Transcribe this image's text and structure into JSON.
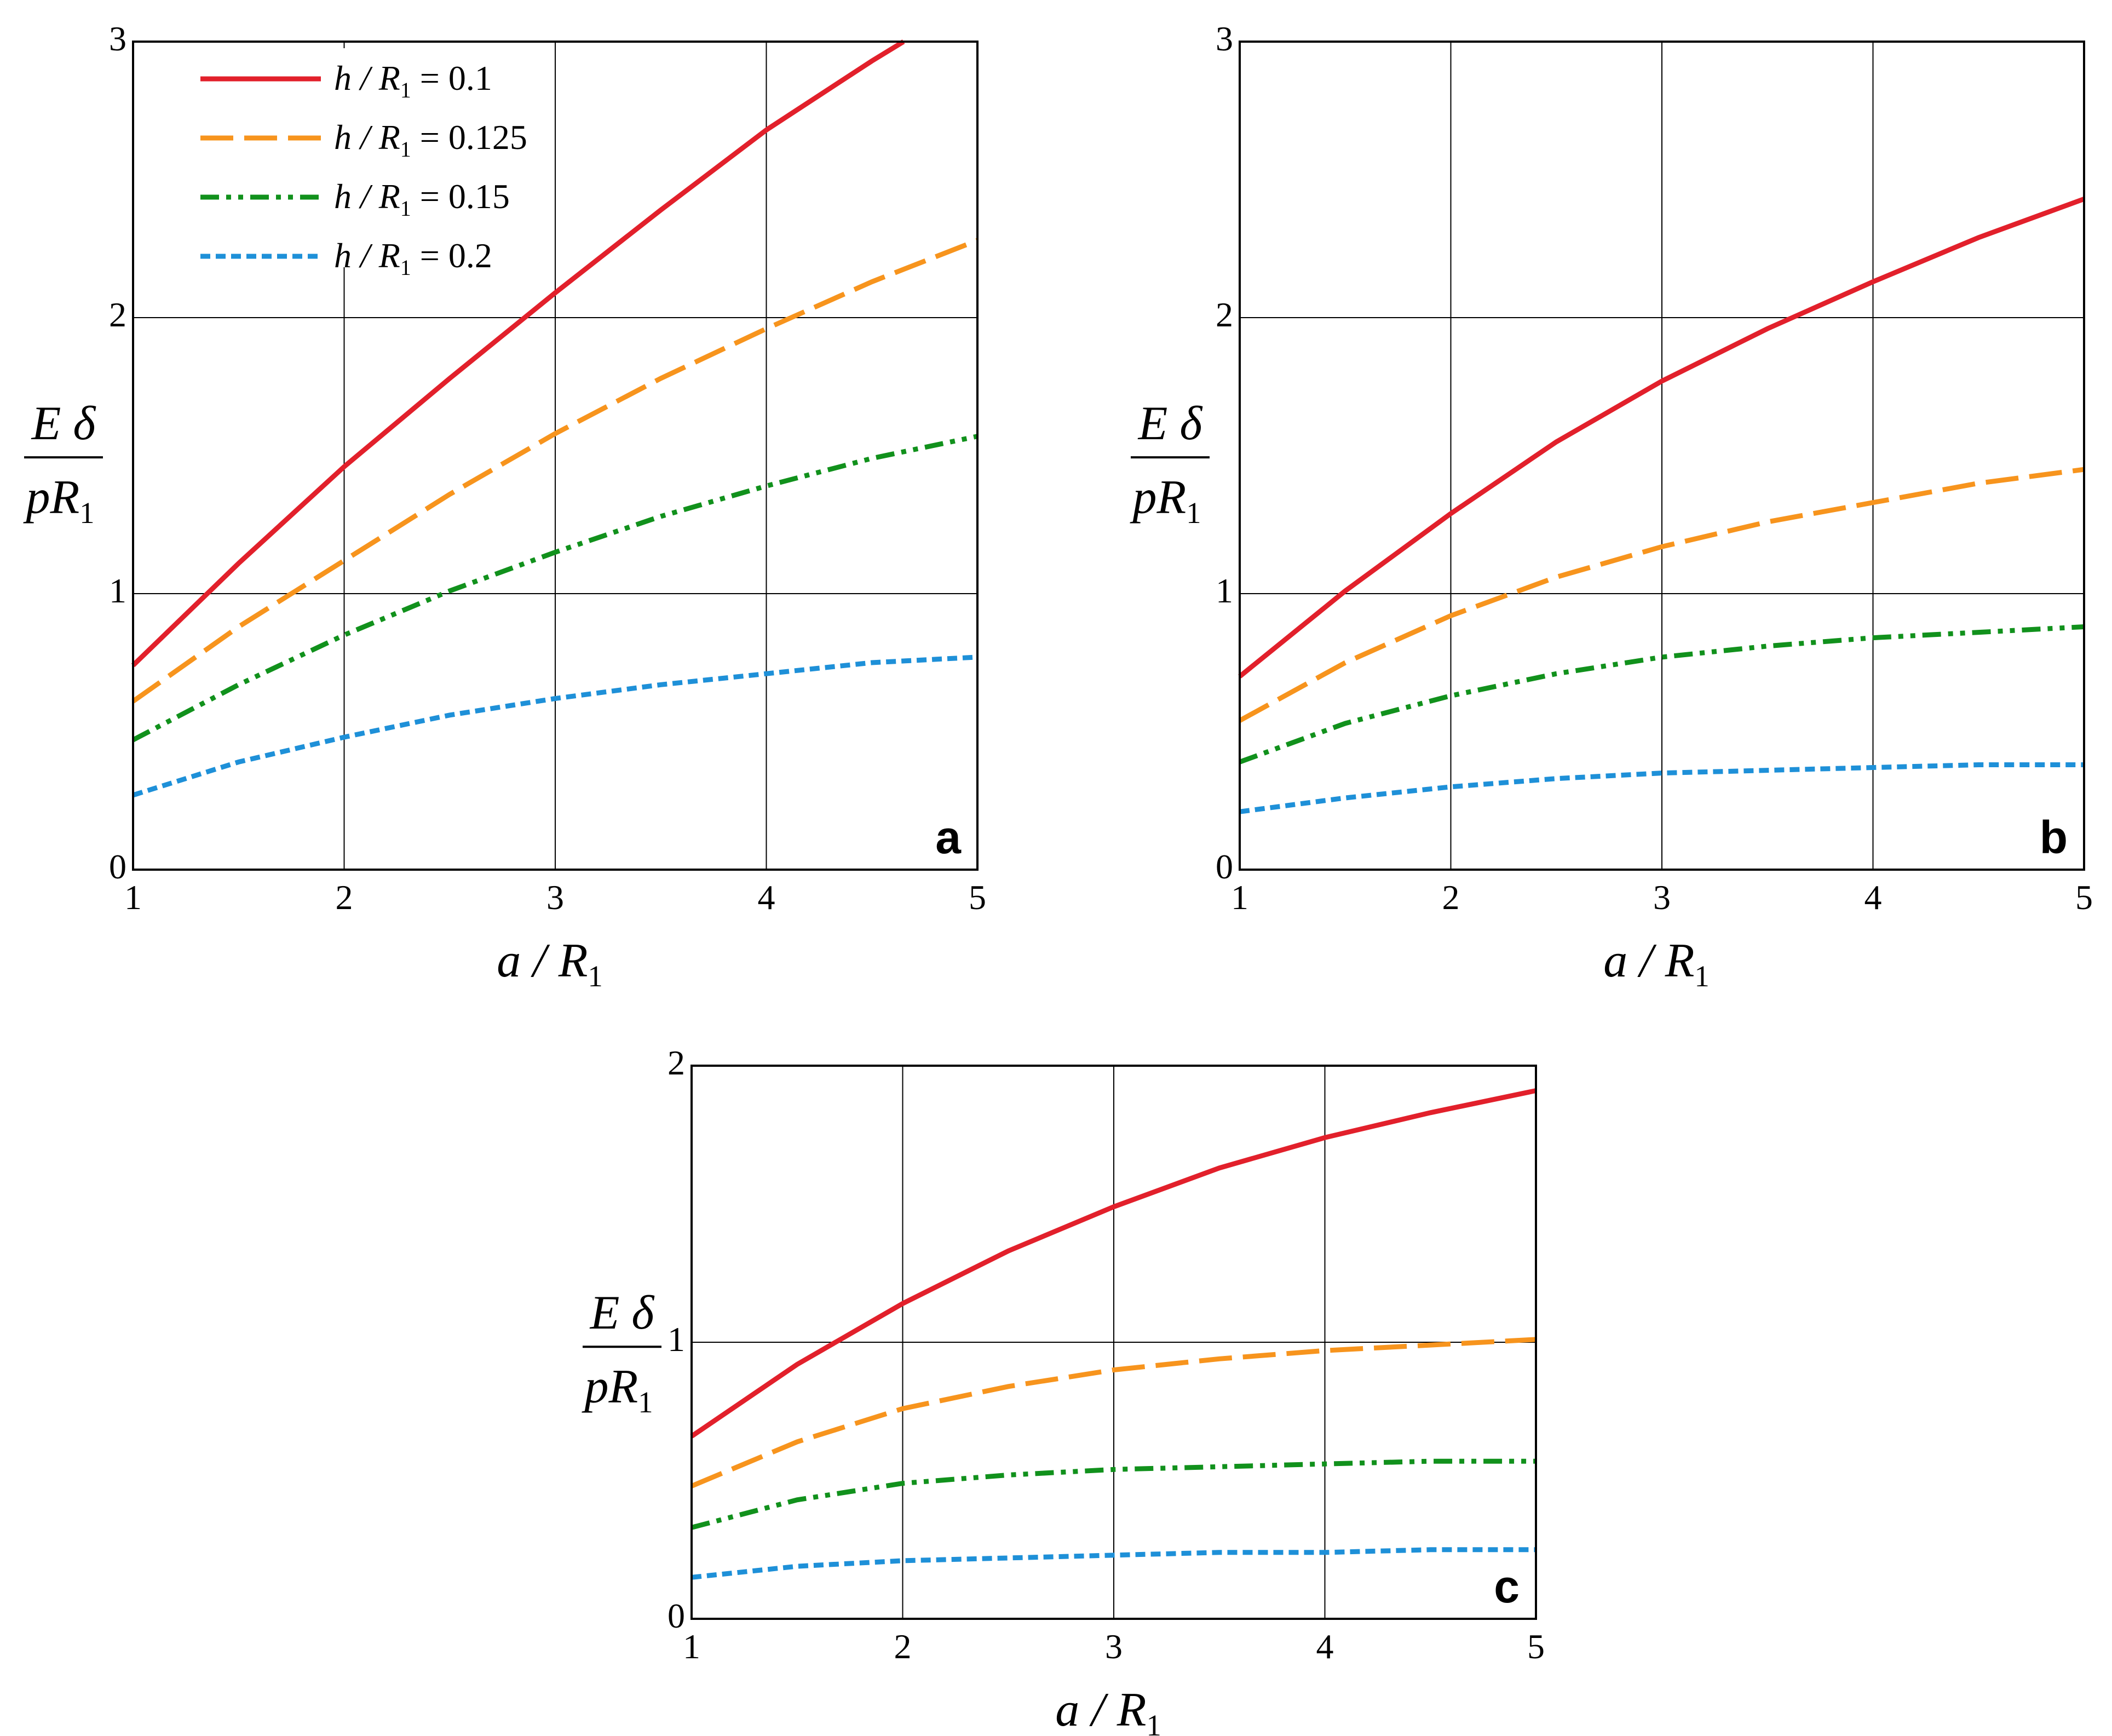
{
  "chart_data": [
    {
      "type": "line",
      "panel_label": "a",
      "xlabel": {
        "main": "a / R",
        "sub": "1"
      },
      "ylabel": {
        "num": "E δ",
        "den_main": "pR",
        "den_sub": "1"
      },
      "xlim": [
        1,
        5
      ],
      "ylim": [
        0,
        3
      ],
      "xticks": [
        "1",
        "2",
        "3",
        "4",
        "5"
      ],
      "yticks": [
        "0",
        "1",
        "2",
        "3"
      ],
      "grid": true,
      "legend": {
        "placement": "top-left",
        "entries": [
          {
            "main": "h / R",
            "sub": "1",
            "value": " = 0.1"
          },
          {
            "main": "h / R",
            "sub": "1",
            "value": " = 0.125"
          },
          {
            "main": "h / R",
            "sub": "1",
            "value": " = 0.15"
          },
          {
            "main": "h / R",
            "sub": "1",
            "value": " = 0.2"
          }
        ]
      },
      "series": [
        {
          "x": [
            1,
            1.5,
            2,
            2.5,
            3,
            3.5,
            4,
            4.5,
            4.65
          ],
          "y": [
            0.74,
            1.11,
            1.46,
            1.78,
            2.09,
            2.39,
            2.68,
            2.93,
            3.0
          ]
        },
        {
          "x": [
            1,
            1.5,
            2,
            2.5,
            3,
            3.5,
            4,
            4.5,
            5
          ],
          "y": [
            0.61,
            0.88,
            1.12,
            1.36,
            1.58,
            1.78,
            1.96,
            2.13,
            2.28
          ]
        },
        {
          "x": [
            1,
            1.5,
            2,
            2.5,
            3,
            3.5,
            4,
            4.5,
            5
          ],
          "y": [
            0.47,
            0.67,
            0.85,
            1.01,
            1.15,
            1.28,
            1.39,
            1.49,
            1.57
          ]
        },
        {
          "x": [
            1,
            1.5,
            2,
            2.5,
            3,
            3.5,
            4,
            4.5,
            5
          ],
          "y": [
            0.27,
            0.39,
            0.48,
            0.56,
            0.62,
            0.67,
            0.71,
            0.75,
            0.77
          ]
        }
      ]
    },
    {
      "type": "line",
      "panel_label": "b",
      "xlabel": {
        "main": "a / R",
        "sub": "1"
      },
      "ylabel": {
        "num": "E δ",
        "den_main": "pR",
        "den_sub": "1"
      },
      "xlim": [
        1,
        5
      ],
      "ylim": [
        0,
        3
      ],
      "xticks": [
        "1",
        "2",
        "3",
        "4",
        "5"
      ],
      "yticks": [
        "0",
        "1",
        "2",
        "3"
      ],
      "grid": true,
      "series": [
        {
          "x": [
            1,
            1.5,
            2,
            2.5,
            3,
            3.5,
            4,
            4.5,
            5
          ],
          "y": [
            0.7,
            1.01,
            1.29,
            1.55,
            1.77,
            1.96,
            2.13,
            2.29,
            2.43
          ]
        },
        {
          "x": [
            1,
            1.5,
            2,
            2.5,
            3,
            3.5,
            4,
            4.5,
            5
          ],
          "y": [
            0.54,
            0.75,
            0.92,
            1.06,
            1.17,
            1.26,
            1.33,
            1.4,
            1.45
          ]
        },
        {
          "x": [
            1,
            1.5,
            2,
            2.5,
            3,
            3.5,
            4,
            4.5,
            5
          ],
          "y": [
            0.39,
            0.53,
            0.63,
            0.71,
            0.77,
            0.81,
            0.84,
            0.86,
            0.88
          ]
        },
        {
          "x": [
            1,
            1.5,
            2,
            2.5,
            3,
            3.5,
            4,
            4.5,
            5
          ],
          "y": [
            0.21,
            0.26,
            0.3,
            0.33,
            0.35,
            0.36,
            0.37,
            0.38,
            0.38
          ]
        }
      ]
    },
    {
      "type": "line",
      "panel_label": "c",
      "xlabel": {
        "main": "a / R",
        "sub": "1"
      },
      "ylabel": {
        "num": "E δ",
        "den_main": "pR",
        "den_sub": "1"
      },
      "xlim": [
        1,
        5
      ],
      "ylim": [
        0,
        2
      ],
      "xticks": [
        "1",
        "2",
        "3",
        "4",
        "5"
      ],
      "yticks": [
        "0",
        "1",
        "2"
      ],
      "grid": true,
      "series": [
        {
          "x": [
            1,
            1.5,
            2,
            2.5,
            3,
            3.5,
            4,
            4.5,
            5
          ],
          "y": [
            0.66,
            0.92,
            1.14,
            1.33,
            1.49,
            1.63,
            1.74,
            1.83,
            1.91
          ]
        },
        {
          "x": [
            1,
            1.5,
            2,
            2.5,
            3,
            3.5,
            4,
            4.5,
            5
          ],
          "y": [
            0.48,
            0.64,
            0.76,
            0.84,
            0.9,
            0.94,
            0.97,
            0.99,
            1.01
          ]
        },
        {
          "x": [
            1,
            1.5,
            2,
            2.5,
            3,
            3.5,
            4,
            4.5,
            5
          ],
          "y": [
            0.33,
            0.43,
            0.49,
            0.52,
            0.54,
            0.55,
            0.56,
            0.57,
            0.57
          ]
        },
        {
          "x": [
            1,
            1.5,
            2,
            2.5,
            3,
            3.5,
            4,
            4.5,
            5
          ],
          "y": [
            0.15,
            0.19,
            0.21,
            0.22,
            0.23,
            0.24,
            0.24,
            0.25,
            0.25
          ]
        }
      ]
    }
  ],
  "series_colors": [
    "#e2202b",
    "#f7941d",
    "#11911c",
    "#1e90d8"
  ]
}
